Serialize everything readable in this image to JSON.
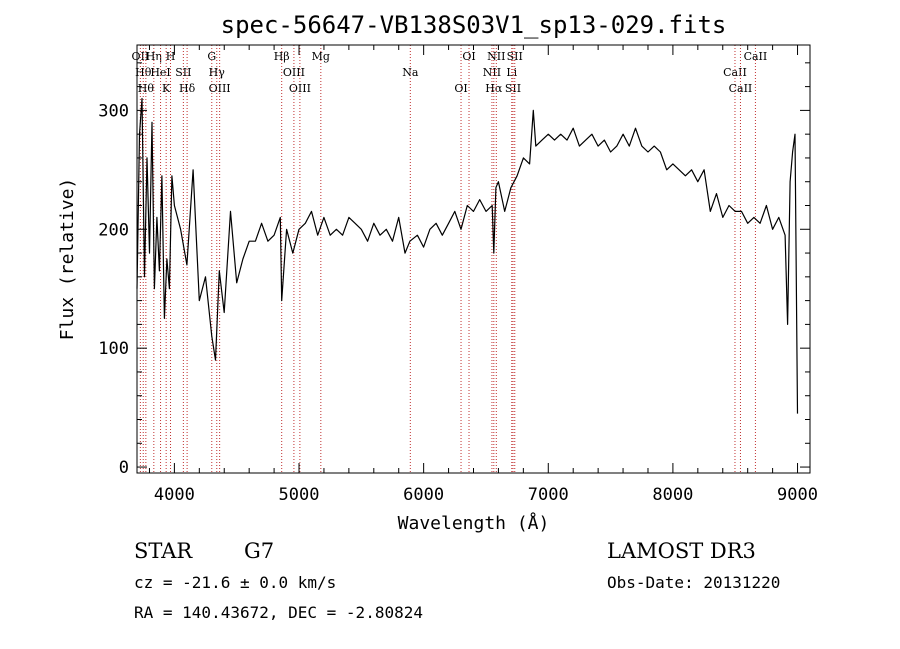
{
  "chart_data": {
    "type": "line",
    "title": "spec-56647-VB138S03V1_sp13-029.fits",
    "xlabel": "Wavelength (Å)",
    "ylabel": "Flux (relative)",
    "xlim": [
      3700,
      9100
    ],
    "ylim": [
      -5,
      355
    ],
    "xticks": [
      4000,
      5000,
      6000,
      7000,
      8000,
      9000
    ],
    "yticks": [
      0,
      100,
      200,
      300
    ],
    "grid": false,
    "series": [
      {
        "color": "#000000",
        "x": [
          3700,
          3720,
          3740,
          3760,
          3780,
          3800,
          3820,
          3840,
          3860,
          3880,
          3900,
          3920,
          3940,
          3960,
          3980,
          4000,
          4050,
          4100,
          4150,
          4200,
          4250,
          4300,
          4330,
          4360,
          4400,
          4450,
          4500,
          4550,
          4600,
          4650,
          4700,
          4750,
          4800,
          4850,
          4861,
          4900,
          4950,
          5000,
          5050,
          5100,
          5150,
          5200,
          5250,
          5300,
          5350,
          5400,
          5450,
          5500,
          5550,
          5600,
          5650,
          5700,
          5750,
          5800,
          5850,
          5890,
          5950,
          6000,
          6050,
          6100,
          6150,
          6200,
          6250,
          6300,
          6350,
          6400,
          6450,
          6500,
          6550,
          6563,
          6580,
          6600,
          6650,
          6700,
          6750,
          6800,
          6850,
          6880,
          6900,
          6950,
          7000,
          7050,
          7100,
          7150,
          7200,
          7250,
          7300,
          7350,
          7400,
          7450,
          7500,
          7550,
          7600,
          7650,
          7700,
          7750,
          7800,
          7850,
          7900,
          7950,
          8000,
          8050,
          8100,
          8150,
          8200,
          8250,
          8300,
          8350,
          8400,
          8450,
          8500,
          8550,
          8600,
          8650,
          8700,
          8750,
          8800,
          8850,
          8900,
          8920,
          8940,
          8960,
          8980,
          9000
        ],
        "y": [
          150,
          280,
          310,
          160,
          260,
          180,
          290,
          150,
          210,
          165,
          245,
          125,
          175,
          150,
          245,
          220,
          200,
          170,
          250,
          140,
          160,
          110,
          90,
          165,
          130,
          215,
          155,
          175,
          190,
          190,
          205,
          190,
          195,
          210,
          140,
          200,
          180,
          200,
          205,
          215,
          195,
          210,
          195,
          200,
          195,
          210,
          205,
          200,
          190,
          205,
          195,
          200,
          190,
          210,
          180,
          190,
          195,
          185,
          200,
          205,
          195,
          205,
          215,
          200,
          220,
          215,
          225,
          215,
          220,
          180,
          235,
          240,
          215,
          235,
          245,
          260,
          255,
          300,
          270,
          275,
          280,
          275,
          280,
          275,
          285,
          270,
          275,
          280,
          270,
          275,
          265,
          270,
          280,
          270,
          285,
          270,
          265,
          270,
          265,
          250,
          255,
          250,
          245,
          250,
          240,
          250,
          215,
          230,
          210,
          220,
          215,
          215,
          205,
          210,
          205,
          220,
          200,
          210,
          195,
          120,
          240,
          265,
          280,
          45
        ]
      }
    ],
    "lines": [
      {
        "x": 3727,
        "label": "OII"
      },
      {
        "x": 3750,
        "label": "Hθ"
      },
      {
        "x": 3771,
        "label": "Hθ"
      },
      {
        "x": 3835,
        "label": "Hη"
      },
      {
        "x": 3889,
        "label": "HeI"
      },
      {
        "x": 3934,
        "label": "K"
      },
      {
        "x": 3969,
        "label": "H"
      },
      {
        "x": 4072,
        "label": "SII"
      },
      {
        "x": 4102,
        "label": "Hδ"
      },
      {
        "x": 4300,
        "label": "G"
      },
      {
        "x": 4340,
        "label": "Hγ"
      },
      {
        "x": 4363,
        "label": "OIII"
      },
      {
        "x": 4861,
        "label": "Hβ"
      },
      {
        "x": 4959,
        "label": "OIII"
      },
      {
        "x": 5007,
        "label": "OIII"
      },
      {
        "x": 5175,
        "label": "Mg"
      },
      {
        "x": 5893,
        "label": "Na"
      },
      {
        "x": 6300,
        "label": "OI"
      },
      {
        "x": 6364,
        "label": "OI"
      },
      {
        "x": 6548,
        "label": "NII"
      },
      {
        "x": 6563,
        "label": "Hα"
      },
      {
        "x": 6583,
        "label": "NII"
      },
      {
        "x": 6707,
        "label": "Li"
      },
      {
        "x": 6717,
        "label": "SII"
      },
      {
        "x": 6731,
        "label": "SII"
      },
      {
        "x": 8498,
        "label": "CaII"
      },
      {
        "x": 8542,
        "label": "CaII"
      },
      {
        "x": 8662,
        "label": "CaII"
      }
    ],
    "line_color": "#c03030"
  },
  "info": {
    "class": "STAR",
    "subclass": "G7",
    "survey": "LAMOST DR3",
    "cz": "cz = -21.6 ± 0.0 km/s",
    "obsdate": "Obs-Date: 20131220",
    "radec": "RA = 140.43672, DEC =  -2.80824"
  }
}
